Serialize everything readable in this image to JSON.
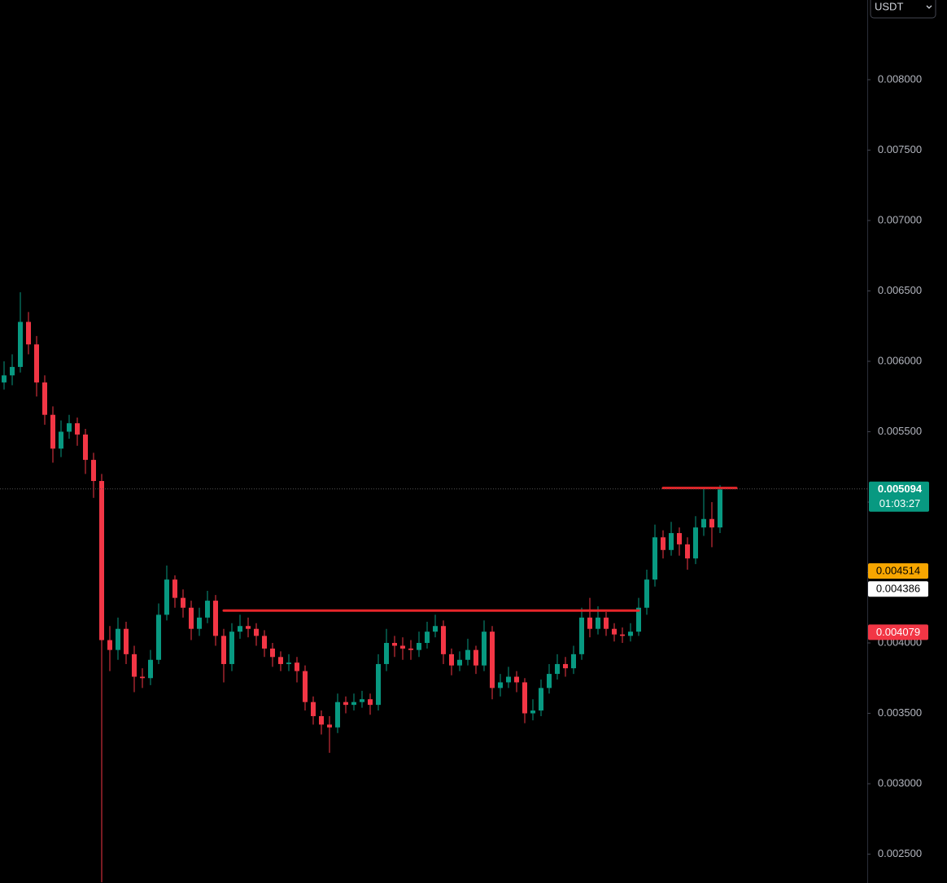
{
  "chart_data": {
    "type": "candlestick",
    "currency": "USDT",
    "up_color": "#089981",
    "down_color": "#f23645",
    "ylim": [
      0.002295,
      0.008566
    ],
    "yticks": [
      {
        "value": 0.0025,
        "label": "0.002500"
      },
      {
        "value": 0.003,
        "label": "0.003000"
      },
      {
        "value": 0.0035,
        "label": "0.003500"
      },
      {
        "value": 0.004,
        "label": "0.004000"
      },
      {
        "value": 0.0045,
        "label": "0.004500"
      },
      {
        "value": 0.005,
        "label": "0.005000"
      },
      {
        "value": 0.0055,
        "label": "0.005500"
      },
      {
        "value": 0.006,
        "label": "0.006000"
      },
      {
        "value": 0.0065,
        "label": "0.006500"
      },
      {
        "value": 0.007,
        "label": "0.007000"
      },
      {
        "value": 0.0075,
        "label": "0.007500"
      },
      {
        "value": 0.008,
        "label": "0.008000"
      }
    ],
    "open": [
      0.00585,
      0.0059,
      0.00596,
      0.00628,
      0.00612,
      0.00585,
      0.00562,
      0.00538,
      0.0055,
      0.00556,
      0.00548,
      0.0053,
      0.00515,
      0.00402,
      0.00395,
      0.0041,
      0.00392,
      0.00376,
      0.00375,
      0.00388,
      0.0042,
      0.00445,
      0.00432,
      0.00425,
      0.0041,
      0.00418,
      0.0043,
      0.00405,
      0.00385,
      0.00408,
      0.00412,
      0.0041,
      0.00405,
      0.00396,
      0.0039,
      0.00385,
      0.00386,
      0.0038,
      0.00358,
      0.00348,
      0.00342,
      0.0034,
      0.00358,
      0.00356,
      0.00358,
      0.0036,
      0.00356,
      0.00385,
      0.004,
      0.00398,
      0.00396,
      0.00395,
      0.004,
      0.00408,
      0.00412,
      0.00392,
      0.00384,
      0.00388,
      0.00395,
      0.00384,
      0.00408,
      0.00368,
      0.00372,
      0.00376,
      0.00372,
      0.0035,
      0.00352,
      0.00368,
      0.00378,
      0.00385,
      0.00382,
      0.00392,
      0.00418,
      0.0041,
      0.00418,
      0.0041,
      0.00406,
      0.00405,
      0.00408,
      0.00425,
      0.00445,
      0.00475,
      0.00466,
      0.00478,
      0.0047,
      0.0046,
      0.00482,
      0.00488,
      0.00482
    ],
    "high": [
      0.006,
      0.00605,
      0.00649,
      0.00635,
      0.00618,
      0.0059,
      0.00568,
      0.00558,
      0.00562,
      0.0056,
      0.00552,
      0.00535,
      0.0052,
      0.00412,
      0.00418,
      0.00415,
      0.00398,
      0.00382,
      0.00395,
      0.00428,
      0.00455,
      0.00448,
      0.00438,
      0.0043,
      0.00425,
      0.00437,
      0.00434,
      0.0041,
      0.00414,
      0.0042,
      0.00418,
      0.00414,
      0.00409,
      0.004,
      0.00394,
      0.00392,
      0.0039,
      0.00384,
      0.00362,
      0.00352,
      0.00348,
      0.00364,
      0.00362,
      0.00364,
      0.00366,
      0.00364,
      0.00392,
      0.0041,
      0.00405,
      0.00404,
      0.00402,
      0.00408,
      0.00415,
      0.0042,
      0.00416,
      0.00396,
      0.00394,
      0.00403,
      0.00398,
      0.00416,
      0.00412,
      0.00378,
      0.00383,
      0.0038,
      0.00375,
      0.0036,
      0.00374,
      0.00385,
      0.00392,
      0.0039,
      0.00398,
      0.00425,
      0.00432,
      0.00426,
      0.00422,
      0.00414,
      0.00411,
      0.00414,
      0.00432,
      0.00452,
      0.00484,
      0.0048,
      0.00486,
      0.00482,
      0.00475,
      0.0049,
      0.0051,
      0.005,
      0.00512
    ],
    "low": [
      0.0058,
      0.00583,
      0.00592,
      0.00605,
      0.00575,
      0.00555,
      0.00528,
      0.00532,
      0.00545,
      0.0054,
      0.0052,
      0.00503,
      0.0023,
      0.0038,
      0.00388,
      0.00385,
      0.00365,
      0.00368,
      0.0037,
      0.00385,
      0.00416,
      0.00425,
      0.00418,
      0.00402,
      0.00405,
      0.00414,
      0.00398,
      0.00372,
      0.0038,
      0.00403,
      0.00404,
      0.00398,
      0.0039,
      0.00383,
      0.0038,
      0.0038,
      0.00372,
      0.00352,
      0.00342,
      0.00335,
      0.00322,
      0.00336,
      0.0035,
      0.00352,
      0.00354,
      0.00349,
      0.00352,
      0.0038,
      0.0039,
      0.00388,
      0.00388,
      0.0039,
      0.00396,
      0.00404,
      0.00385,
      0.00377,
      0.0038,
      0.00384,
      0.00378,
      0.0038,
      0.0036,
      0.00362,
      0.00368,
      0.00365,
      0.00343,
      0.00345,
      0.00348,
      0.00364,
      0.00374,
      0.00376,
      0.00378,
      0.00388,
      0.00404,
      0.00406,
      0.00405,
      0.00401,
      0.004,
      0.00401,
      0.00405,
      0.0042,
      0.0044,
      0.0046,
      0.00462,
      0.00462,
      0.00452,
      0.00456,
      0.00476,
      0.00468,
      0.00478
    ],
    "close": [
      0.0059,
      0.00596,
      0.00628,
      0.00612,
      0.00585,
      0.00562,
      0.00538,
      0.0055,
      0.00556,
      0.00548,
      0.0053,
      0.00515,
      0.00402,
      0.00395,
      0.0041,
      0.00392,
      0.00376,
      0.00375,
      0.00388,
      0.0042,
      0.00445,
      0.00432,
      0.00425,
      0.0041,
      0.00418,
      0.0043,
      0.00405,
      0.00385,
      0.00408,
      0.00412,
      0.0041,
      0.00405,
      0.00396,
      0.0039,
      0.00385,
      0.00386,
      0.0038,
      0.00358,
      0.00348,
      0.00342,
      0.0034,
      0.00358,
      0.00356,
      0.00358,
      0.0036,
      0.00356,
      0.00385,
      0.004,
      0.00398,
      0.00396,
      0.00395,
      0.004,
      0.00408,
      0.00412,
      0.00392,
      0.00384,
      0.00388,
      0.00395,
      0.00384,
      0.00408,
      0.00368,
      0.00372,
      0.00376,
      0.00372,
      0.0035,
      0.00352,
      0.00368,
      0.00378,
      0.00385,
      0.00382,
      0.00392,
      0.00418,
      0.0041,
      0.00418,
      0.0041,
      0.00406,
      0.00405,
      0.00408,
      0.00425,
      0.00445,
      0.00475,
      0.00466,
      0.00478,
      0.0047,
      0.0046,
      0.00482,
      0.00488,
      0.00482,
      0.00509
    ],
    "current_price": {
      "value": 0.005094,
      "countdown": "01:03:27",
      "color": "#089981"
    },
    "price_tags": [
      {
        "value": 0.004514,
        "color": "#f7a600",
        "text_color": "#000000"
      },
      {
        "value": 0.004386,
        "color": "#ffffff",
        "text_color": "#000000"
      },
      {
        "value": 0.004079,
        "color": "#f23645",
        "text_color": "#ffffff"
      }
    ],
    "trend_lines": [
      {
        "value": 0.00423,
        "from_candle": 27,
        "to_candle": 78,
        "color": "#e8262a"
      },
      {
        "value": 0.0051,
        "from_candle": 81,
        "to_candle": 90,
        "color": "#e8262a"
      }
    ]
  }
}
